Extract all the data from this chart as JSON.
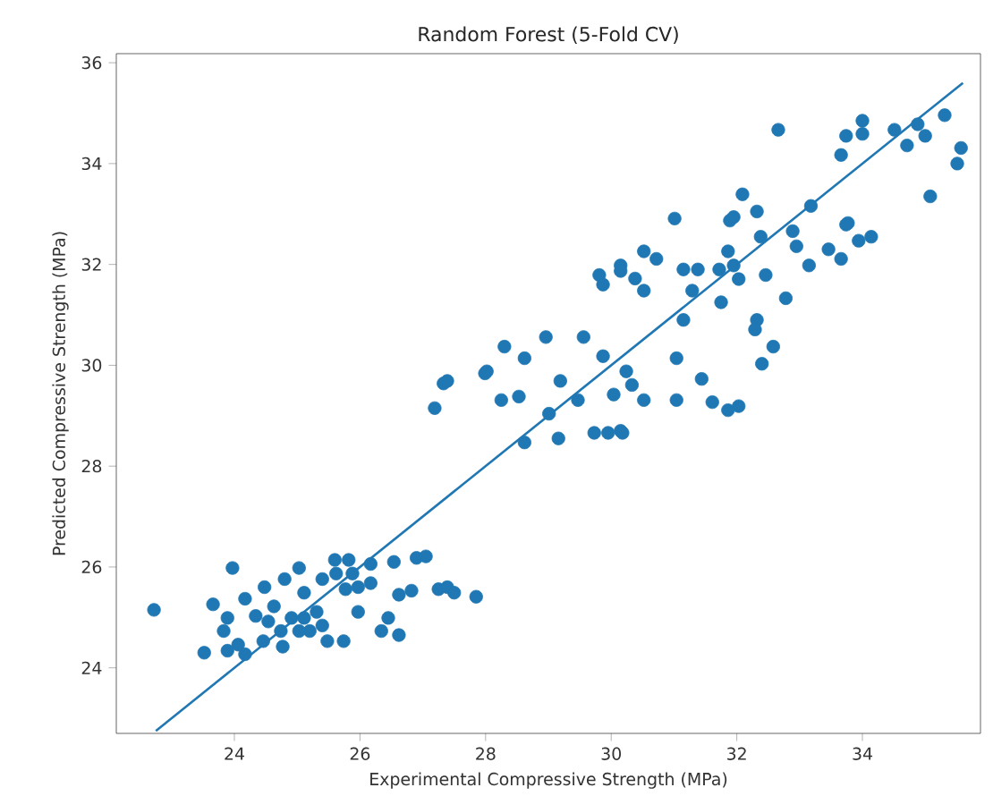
{
  "chart_data": {
    "type": "scatter",
    "title": "Random Forest (5-Fold CV)",
    "xlabel": "Experimental Compressive Strength (MPa)",
    "ylabel": "Predicted Compressive Strength (MPa)",
    "xlim": [
      22.12,
      35.88
    ],
    "ylim": [
      22.7,
      36.18
    ],
    "xticks": [
      24,
      26,
      28,
      30,
      32,
      34
    ],
    "yticks": [
      24,
      26,
      28,
      30,
      32,
      34,
      36
    ],
    "grid": false,
    "marker": "circle",
    "series": [
      {
        "color": "#1f77b4",
        "x": [
          22.72,
          23.97,
          23.52,
          23.66,
          24.48,
          24.8,
          25.03,
          24.17,
          23.89,
          24.17,
          24.77,
          25.6,
          25.82,
          26.17,
          26.54,
          26.9,
          27.05,
          27.25,
          27.39,
          27.5,
          27.85,
          26.62,
          26.82,
          26.34,
          26.62,
          26.45,
          26.17,
          25.97,
          25.77,
          25.97,
          25.74,
          25.48,
          25.2,
          25.31,
          25.11,
          24.91,
          25.03,
          24.74,
          24.54,
          24.34,
          23.89,
          23.83,
          24.06,
          24.46,
          25.4,
          25.62,
          25.4,
          24.63,
          25.11,
          25.88,
          27.19,
          27.33,
          27.99,
          28.3,
          28.96,
          29.56,
          28.62,
          28.25,
          28.62,
          29.16,
          29.73,
          30.15,
          29.87,
          29.19,
          28.53,
          29.01,
          29.47,
          30.04,
          30.33,
          29.81,
          30.15,
          30.38,
          27.39,
          28.02,
          29.95,
          30.18,
          30.24,
          30.52,
          31.04,
          31.04,
          31.44,
          31.61,
          31.86,
          32.03,
          31.15,
          31.75,
          31.29,
          32.32,
          32.29,
          32.58,
          32.4,
          32.78,
          32.46,
          32.03,
          31.95,
          31.86,
          31.15,
          31.38,
          31.72,
          30.52,
          30.72,
          31.01,
          30.15,
          29.87,
          30.52,
          31.95,
          32.09,
          32.32,
          32.38,
          32.89,
          32.95,
          33.15,
          33.18,
          33.46,
          33.66,
          33.77,
          33.94,
          34.14,
          35.08,
          32.66,
          33.66,
          33.74,
          34.0,
          34.0,
          34.51,
          34.71,
          34.88,
          35.0,
          35.31,
          35.57,
          35.51,
          31.89,
          33.74
        ],
        "values": [
          25.15,
          25.98,
          24.3,
          25.26,
          25.6,
          25.76,
          25.98,
          25.37,
          24.34,
          24.27,
          24.42,
          26.14,
          26.14,
          26.06,
          26.1,
          26.18,
          26.21,
          25.56,
          25.6,
          25.49,
          25.41,
          25.45,
          25.53,
          24.73,
          24.65,
          24.99,
          25.68,
          25.6,
          25.56,
          25.11,
          24.53,
          24.53,
          24.73,
          25.11,
          25.49,
          24.99,
          24.73,
          24.73,
          24.92,
          25.03,
          24.99,
          24.73,
          24.46,
          24.53,
          25.76,
          25.87,
          24.84,
          25.22,
          24.99,
          25.87,
          29.15,
          29.64,
          29.84,
          30.37,
          30.56,
          30.56,
          30.14,
          29.31,
          28.47,
          28.55,
          28.66,
          28.7,
          30.18,
          29.69,
          29.38,
          29.04,
          29.31,
          29.42,
          29.61,
          31.79,
          31.98,
          31.72,
          29.69,
          29.88,
          28.66,
          28.66,
          29.88,
          29.31,
          30.14,
          29.31,
          29.73,
          29.27,
          29.11,
          29.19,
          30.9,
          31.25,
          31.48,
          30.9,
          30.71,
          30.37,
          30.03,
          31.33,
          31.79,
          31.71,
          31.98,
          32.26,
          31.9,
          31.9,
          31.9,
          32.26,
          32.11,
          32.91,
          31.87,
          31.6,
          31.48,
          32.94,
          33.39,
          33.05,
          32.55,
          32.66,
          32.36,
          31.98,
          33.16,
          32.3,
          32.11,
          32.82,
          32.47,
          32.55,
          33.35,
          34.67,
          34.17,
          34.55,
          34.85,
          34.59,
          34.67,
          34.36,
          34.78,
          34.55,
          34.96,
          34.31,
          34.0,
          32.87,
          32.79
        ]
      },
      {
        "type": "line",
        "color": "#1f77b4",
        "marker": "none",
        "x": [
          22.75,
          35.6
        ],
        "values": [
          22.75,
          35.6
        ]
      }
    ]
  }
}
